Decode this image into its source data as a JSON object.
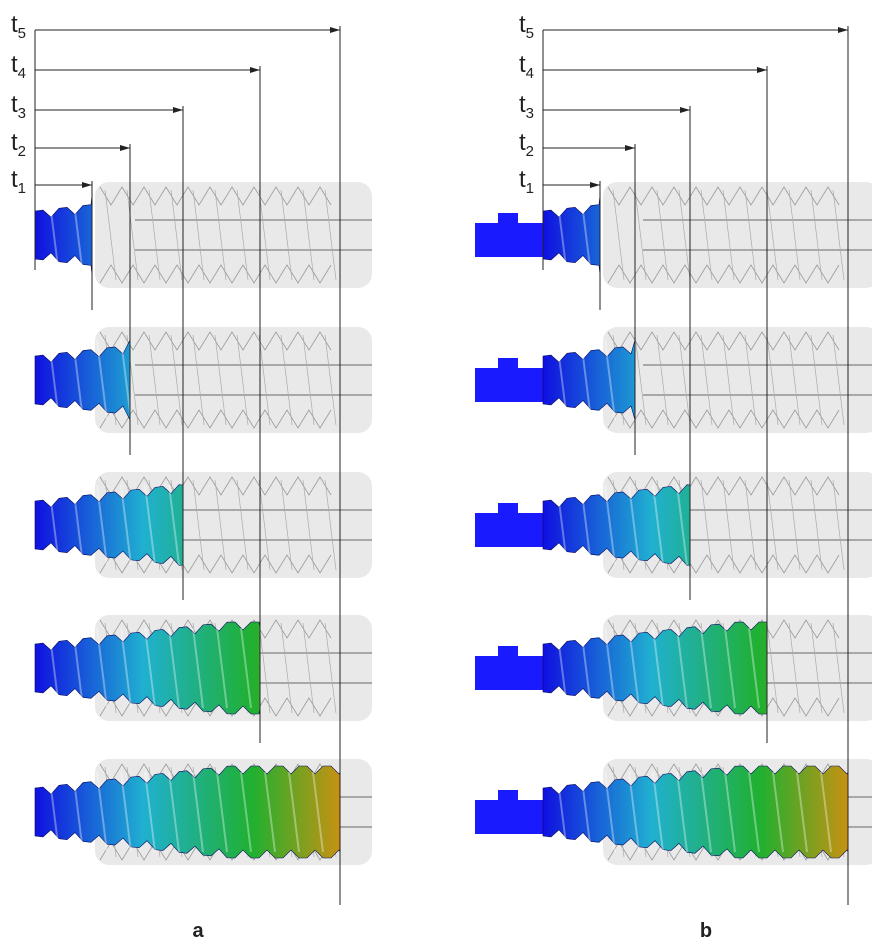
{
  "panels": [
    {
      "label": "a",
      "markers": [
        {
          "symbol": "t",
          "subscript": "1"
        },
        {
          "symbol": "t",
          "subscript": "2"
        },
        {
          "symbol": "t",
          "subscript": "3"
        },
        {
          "symbol": "t",
          "subscript": "4"
        },
        {
          "symbol": "t",
          "subscript": "5"
        }
      ]
    },
    {
      "label": "b",
      "markers": [
        {
          "symbol": "t",
          "subscript": "1"
        },
        {
          "symbol": "t",
          "subscript": "2"
        },
        {
          "symbol": "t",
          "subscript": "3"
        },
        {
          "symbol": "t",
          "subscript": "4"
        },
        {
          "symbol": "t",
          "subscript": "5"
        }
      ]
    }
  ]
}
